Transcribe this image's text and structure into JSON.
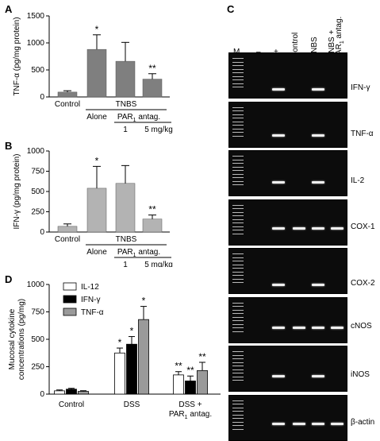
{
  "panels": {
    "A": {
      "letter": "A",
      "ylabel": "TNF-α (pg/mg protein)",
      "yticks": [
        0,
        500,
        1000,
        1500
      ],
      "ylim": [
        0,
        1500
      ],
      "groups": [
        "Control",
        "TNBS",
        "Alone",
        "PAR",
        "1",
        "antag.",
        "1",
        "5 mg/kg"
      ],
      "bar_color": "#7f7f7f"
    },
    "B": {
      "letter": "B",
      "ylabel": "IFN-γ (pg/mg protein)",
      "yticks": [
        0,
        250,
        500,
        750,
        1000
      ],
      "ylim": [
        0,
        1000
      ],
      "bar_color": "#b3b3b3"
    },
    "C": {
      "letter": "C",
      "lane_labels": [
        "M",
        "–",
        "+",
        "Control",
        "TNBS",
        "TNBS +",
        "PAR",
        "1",
        "antag."
      ],
      "gels": [
        {
          "label": "IFN-γ"
        },
        {
          "label": "TNF-α"
        },
        {
          "label": "IL-2"
        },
        {
          "label": "COX-1"
        },
        {
          "label": "COX-2"
        },
        {
          "label": "cNOS"
        },
        {
          "label": "iNOS"
        },
        {
          "label": "β-actin"
        }
      ]
    },
    "D": {
      "letter": "D",
      "ylabel": "Mucosal cytokine concentrations (pg/mg)",
      "yticks": [
        0,
        250,
        500,
        750,
        1000
      ],
      "legend": [
        "IL-12",
        "IFN-γ",
        "TNF-α"
      ],
      "groups": [
        "Control",
        "DSS",
        "DSS +",
        "PAR",
        "1",
        "antag."
      ]
    }
  },
  "text": {
    "control": "Control",
    "tnbs": "TNBS",
    "alone": "Alone",
    "par": "PAR",
    "sub1": "1",
    "antag": " antag.",
    "one": "1",
    "five": "5 mg/kg",
    "dss": "DSS",
    "dssplus": "DSS +",
    "antag2": " antag.",
    "star": "*",
    "dstar": "**"
  },
  "chart_data": [
    {
      "type": "bar",
      "title": "",
      "ylabel": "TNF-α (pg/mg protein)",
      "categories": [
        "Control",
        "TNBS Alone",
        "TNBS + PAR1 antag. 1",
        "TNBS + PAR1 antag. 5 mg/kg"
      ],
      "values": [
        90,
        880,
        660,
        330
      ],
      "errors": [
        25,
        270,
        350,
        100
      ],
      "significance": [
        "",
        "*",
        "",
        "**"
      ],
      "ylim": [
        0,
        1500
      ]
    },
    {
      "type": "bar",
      "title": "",
      "ylabel": "IFN-γ (pg/mg protein)",
      "categories": [
        "Control",
        "TNBS Alone",
        "TNBS + PAR1 antag. 1",
        "TNBS + PAR1 antag. 5 mg/kg"
      ],
      "values": [
        70,
        540,
        600,
        160
      ],
      "errors": [
        30,
        270,
        220,
        50
      ],
      "significance": [
        "",
        "*",
        "",
        "**"
      ],
      "ylim": [
        0,
        1000
      ]
    },
    {
      "type": "bar",
      "title": "",
      "ylabel": "Mucosal cytokine concentrations (pg/mg)",
      "categories": [
        "Control",
        "DSS",
        "DSS + PAR1 antag."
      ],
      "series": [
        {
          "name": "IL-12",
          "color": "#ffffff",
          "values": [
            30,
            375,
            175
          ],
          "errors": [
            8,
            45,
            30
          ],
          "significance": [
            "",
            "*",
            "**"
          ]
        },
        {
          "name": "IFN-γ",
          "color": "#000000",
          "values": [
            45,
            455,
            120
          ],
          "errors": [
            8,
            70,
            45
          ],
          "significance": [
            "",
            "*",
            "**"
          ]
        },
        {
          "name": "TNF-α",
          "color": "#9a9a9a",
          "values": [
            25,
            680,
            215
          ],
          "errors": [
            6,
            120,
            75
          ],
          "significance": [
            "",
            "*",
            "**"
          ]
        }
      ],
      "ylim": [
        0,
        1000
      ]
    }
  ]
}
